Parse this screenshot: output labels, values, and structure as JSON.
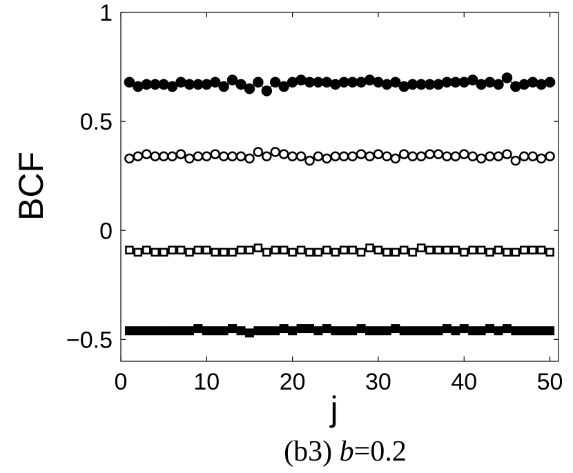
{
  "chart_data": {
    "type": "scatter",
    "xlabel": "j",
    "ylabel": "BCF",
    "xlim": [
      0,
      51
    ],
    "ylim": [
      -0.6,
      1
    ],
    "xticks": [
      0,
      10,
      20,
      30,
      40,
      50
    ],
    "yticks": [
      -0.5,
      0,
      0.5,
      1
    ],
    "ytick_labels": [
      "−0.5",
      "0",
      "0.5",
      "1"
    ],
    "grid": false,
    "caption_prefix": "(b3) ",
    "caption_var": "b",
    "caption_suffix": "=0.2",
    "x": [
      1,
      2,
      3,
      4,
      5,
      6,
      7,
      8,
      9,
      10,
      11,
      12,
      13,
      14,
      15,
      16,
      17,
      18,
      19,
      20,
      21,
      22,
      23,
      24,
      25,
      26,
      27,
      28,
      29,
      30,
      31,
      32,
      33,
      34,
      35,
      36,
      37,
      38,
      39,
      40,
      41,
      42,
      43,
      44,
      45,
      46,
      47,
      48,
      49,
      50
    ],
    "series": [
      {
        "marker": "filled-circle",
        "values": [
          0.68,
          0.66,
          0.67,
          0.67,
          0.67,
          0.66,
          0.68,
          0.67,
          0.67,
          0.67,
          0.68,
          0.66,
          0.69,
          0.67,
          0.65,
          0.68,
          0.64,
          0.68,
          0.66,
          0.68,
          0.69,
          0.68,
          0.68,
          0.68,
          0.67,
          0.68,
          0.68,
          0.68,
          0.69,
          0.68,
          0.67,
          0.68,
          0.66,
          0.67,
          0.67,
          0.67,
          0.67,
          0.68,
          0.68,
          0.68,
          0.69,
          0.67,
          0.68,
          0.67,
          0.7,
          0.66,
          0.67,
          0.68,
          0.67,
          0.68
        ]
      },
      {
        "marker": "open-circle",
        "values": [
          0.33,
          0.34,
          0.35,
          0.34,
          0.34,
          0.34,
          0.35,
          0.33,
          0.34,
          0.34,
          0.35,
          0.34,
          0.34,
          0.34,
          0.33,
          0.36,
          0.34,
          0.36,
          0.35,
          0.34,
          0.34,
          0.32,
          0.34,
          0.33,
          0.34,
          0.34,
          0.34,
          0.35,
          0.34,
          0.35,
          0.34,
          0.33,
          0.35,
          0.34,
          0.34,
          0.35,
          0.35,
          0.34,
          0.34,
          0.35,
          0.34,
          0.33,
          0.34,
          0.34,
          0.35,
          0.32,
          0.34,
          0.34,
          0.33,
          0.34
        ]
      },
      {
        "marker": "open-square",
        "values": [
          -0.09,
          -0.1,
          -0.09,
          -0.1,
          -0.1,
          -0.09,
          -0.09,
          -0.1,
          -0.09,
          -0.09,
          -0.1,
          -0.1,
          -0.1,
          -0.09,
          -0.09,
          -0.08,
          -0.1,
          -0.09,
          -0.09,
          -0.1,
          -0.09,
          -0.1,
          -0.1,
          -0.09,
          -0.1,
          -0.09,
          -0.09,
          -0.1,
          -0.08,
          -0.09,
          -0.1,
          -0.1,
          -0.09,
          -0.1,
          -0.08,
          -0.09,
          -0.09,
          -0.09,
          -0.09,
          -0.1,
          -0.09,
          -0.09,
          -0.1,
          -0.09,
          -0.1,
          -0.1,
          -0.09,
          -0.09,
          -0.09,
          -0.1
        ]
      },
      {
        "marker": "filled-square",
        "values": [
          -0.46,
          -0.46,
          -0.46,
          -0.46,
          -0.46,
          -0.46,
          -0.46,
          -0.46,
          -0.45,
          -0.46,
          -0.46,
          -0.46,
          -0.45,
          -0.46,
          -0.47,
          -0.46,
          -0.46,
          -0.46,
          -0.45,
          -0.46,
          -0.45,
          -0.45,
          -0.46,
          -0.45,
          -0.46,
          -0.46,
          -0.46,
          -0.45,
          -0.46,
          -0.46,
          -0.46,
          -0.45,
          -0.46,
          -0.46,
          -0.46,
          -0.46,
          -0.46,
          -0.45,
          -0.46,
          -0.45,
          -0.46,
          -0.46,
          -0.45,
          -0.46,
          -0.45,
          -0.46,
          -0.46,
          -0.46,
          -0.46,
          -0.46
        ]
      }
    ]
  }
}
